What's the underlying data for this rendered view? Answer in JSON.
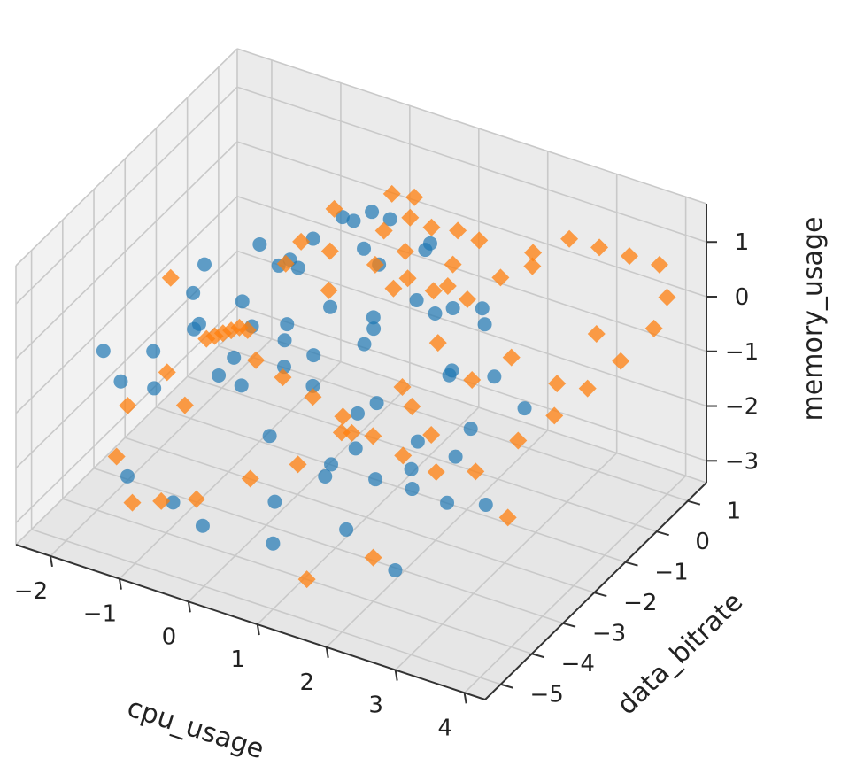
{
  "chart_data": {
    "type": "scatter",
    "projection": "3d",
    "grid": true,
    "xlabel": "cpu_usage",
    "ylabel": "data_bitrate",
    "zlabel": "memory_usage",
    "xlim": [
      -2.5,
      4.3
    ],
    "ylim": [
      -5.5,
      1.6
    ],
    "zlim": [
      -3.4,
      1.7
    ],
    "xticks": [
      "−2",
      "−1",
      "0",
      "1",
      "2",
      "3",
      "4"
    ],
    "yticks": [
      "−5",
      "−4",
      "−3",
      "−2",
      "−1",
      "0",
      "1"
    ],
    "zticks": [
      "−3",
      "−2",
      "−1",
      "0",
      "1"
    ],
    "series": [
      {
        "marker": "circle",
        "color": "#1f77b4",
        "points": [
          [
            0.0,
            -1.5,
            1.0
          ],
          [
            0.2,
            -1.0,
            1.2
          ],
          [
            0.4,
            -0.5,
            1.1
          ],
          [
            0.6,
            -1.2,
            0.9
          ],
          [
            0.8,
            -0.8,
            1.3
          ],
          [
            1.0,
            -1.6,
            1.0
          ],
          [
            1.2,
            -0.4,
            0.8
          ],
          [
            1.4,
            -1.0,
            1.1
          ],
          [
            -0.2,
            -1.8,
            0.7
          ],
          [
            0.1,
            -2.2,
            0.9
          ],
          [
            -0.5,
            -1.5,
            0.3
          ],
          [
            -0.8,
            -2.0,
            -0.2
          ],
          [
            -1.0,
            -1.0,
            0.2
          ],
          [
            -1.2,
            -2.5,
            -0.5
          ],
          [
            -0.3,
            -2.8,
            0.0
          ],
          [
            0.3,
            -3.0,
            0.4
          ],
          [
            0.7,
            -2.5,
            0.6
          ],
          [
            1.1,
            -2.0,
            0.3
          ],
          [
            1.5,
            -1.5,
            0.5
          ],
          [
            1.8,
            -1.0,
            0.2
          ],
          [
            2.0,
            -0.5,
            0.0
          ],
          [
            2.2,
            -2.0,
            -0.3
          ],
          [
            1.6,
            -3.0,
            -0.5
          ],
          [
            0.9,
            -3.5,
            -0.2
          ],
          [
            0.0,
            -3.8,
            -0.4
          ],
          [
            -0.6,
            -3.2,
            -0.8
          ],
          [
            -1.5,
            -2.0,
            -1.0
          ],
          [
            -1.8,
            -1.0,
            -0.5
          ],
          [
            -2.0,
            -2.2,
            -1.5
          ],
          [
            -1.4,
            -3.5,
            -1.2
          ],
          [
            0.5,
            -4.0,
            -1.0
          ],
          [
            1.3,
            -3.8,
            -1.3
          ],
          [
            2.1,
            -3.0,
            -1.5
          ],
          [
            2.6,
            -2.2,
            -1.0
          ],
          [
            2.4,
            -1.0,
            -0.8
          ],
          [
            1.9,
            -0.2,
            -0.5
          ],
          [
            1.0,
            0.2,
            -0.9
          ],
          [
            0.2,
            0.0,
            -1.4
          ],
          [
            -0.4,
            -0.6,
            -1.8
          ],
          [
            -1.0,
            -0.2,
            -2.0
          ],
          [
            -1.6,
            -0.5,
            -2.4
          ],
          [
            0.6,
            -1.4,
            -2.0
          ],
          [
            1.4,
            -2.6,
            -2.2
          ],
          [
            2.2,
            -1.8,
            -1.9
          ],
          [
            0.8,
            -4.5,
            -1.8
          ],
          [
            1.7,
            -4.2,
            -2.1
          ],
          [
            -0.2,
            -4.6,
            -2.6
          ],
          [
            -0.9,
            -4.0,
            -2.8
          ],
          [
            0.4,
            -2.0,
            -2.9
          ],
          [
            1.2,
            -0.8,
            -2.6
          ],
          [
            2.8,
            -3.4,
            -1.6
          ],
          [
            3.0,
            -2.6,
            -2.0
          ],
          [
            2.5,
            -4.4,
            -2.4
          ],
          [
            1.0,
            -5.0,
            -2.2
          ],
          [
            -1.2,
            -4.8,
            -2.0
          ],
          [
            -2.0,
            -3.8,
            -0.6
          ],
          [
            -2.2,
            -2.8,
            -1.8
          ],
          [
            0.0,
            -0.2,
            0.6
          ],
          [
            1.6,
            -3.4,
            0.8
          ],
          [
            0.8,
            -4.2,
            0.5
          ],
          [
            2.6,
            -2.8,
            0.4
          ],
          [
            3.2,
            -1.8,
            -0.6
          ],
          [
            -0.7,
            -3.8,
            1.0
          ],
          [
            1.3,
            -1.2,
            -3.2
          ],
          [
            0.3,
            -0.8,
            -3.1
          ]
        ]
      },
      {
        "marker": "diamond",
        "color": "#ff7f0e",
        "points": [
          [
            0.8,
            -1.0,
            1.2
          ],
          [
            1.0,
            -0.6,
            1.3
          ],
          [
            1.2,
            -1.2,
            1.1
          ],
          [
            1.4,
            -0.8,
            1.4
          ],
          [
            1.6,
            -0.4,
            1.2
          ],
          [
            1.8,
            -1.0,
            1.0
          ],
          [
            2.0,
            -0.6,
            1.3
          ],
          [
            0.6,
            -0.3,
            1.4
          ],
          [
            0.9,
            -1.5,
            0.9
          ],
          [
            1.3,
            -1.8,
            0.8
          ],
          [
            1.7,
            -1.4,
            0.7
          ],
          [
            2.1,
            -1.2,
            0.6
          ],
          [
            2.4,
            -0.8,
            0.9
          ],
          [
            2.6,
            -0.2,
            1.1
          ],
          [
            2.9,
            0.3,
            1.2
          ],
          [
            3.2,
            0.6,
            1.0
          ],
          [
            3.5,
            0.9,
            0.8
          ],
          [
            3.8,
            1.2,
            0.6
          ],
          [
            4.0,
            1.0,
            0.2
          ],
          [
            3.9,
            0.8,
            -0.3
          ],
          [
            3.6,
            0.4,
            -0.8
          ],
          [
            3.3,
            0.0,
            -1.2
          ],
          [
            3.0,
            -0.4,
            -1.6
          ],
          [
            2.7,
            -0.9,
            -1.9
          ],
          [
            2.4,
            -1.6,
            -2.2
          ],
          [
            2.1,
            -2.2,
            -2.0
          ],
          [
            1.8,
            -2.6,
            -1.6
          ],
          [
            1.5,
            -2.9,
            -1.2
          ],
          [
            1.2,
            -3.2,
            -0.8
          ],
          [
            0.9,
            -3.5,
            -0.4
          ],
          [
            0.6,
            -3.8,
            0.0
          ],
          [
            0.3,
            -4.0,
            0.3
          ],
          [
            0.0,
            -3.6,
            0.5
          ],
          [
            -0.3,
            -3.2,
            0.2
          ],
          [
            -0.6,
            -2.8,
            -0.2
          ],
          [
            -0.9,
            -2.4,
            -0.6
          ],
          [
            -1.2,
            -2.0,
            -1.0
          ],
          [
            -1.5,
            -1.6,
            -1.4
          ],
          [
            -1.8,
            -2.2,
            -1.8
          ],
          [
            -2.1,
            -2.8,
            -2.2
          ],
          [
            -1.9,
            -3.6,
            -2.6
          ],
          [
            -1.4,
            -4.2,
            -2.9
          ],
          [
            -0.8,
            -4.6,
            -2.4
          ],
          [
            -0.2,
            -4.8,
            -2.0
          ],
          [
            0.4,
            -4.4,
            -1.6
          ],
          [
            1.0,
            -4.2,
            -1.2
          ],
          [
            1.6,
            -3.8,
            -0.6
          ],
          [
            2.2,
            -3.2,
            -0.2
          ],
          [
            2.8,
            -2.6,
            0.2
          ],
          [
            3.1,
            -2.0,
            0.4
          ],
          [
            1.1,
            -0.9,
            0.4
          ],
          [
            1.5,
            -0.5,
            0.2
          ],
          [
            1.9,
            -1.7,
            0.0
          ],
          [
            0.5,
            -2.1,
            0.6
          ],
          [
            0.2,
            -1.4,
            0.8
          ],
          [
            -0.4,
            -1.0,
            0.5
          ],
          [
            -0.1,
            -0.6,
            1.0
          ],
          [
            2.3,
            -2.8,
            -0.9
          ],
          [
            1.7,
            -2.4,
            -0.5
          ],
          [
            1.0,
            -2.8,
            -1.4
          ],
          [
            3.4,
            -1.2,
            -0.4
          ],
          [
            3.7,
            -0.6,
            0.3
          ],
          [
            2.5,
            0.0,
            0.7
          ],
          [
            0.7,
            0.2,
            1.1
          ],
          [
            -1.0,
            -3.4,
            -1.4
          ],
          [
            2.0,
            -4.0,
            -2.6
          ],
          [
            3.5,
            -3.0,
            -1.8
          ],
          [
            -2.2,
            -1.2,
            -0.8
          ],
          [
            1.4,
            -4.8,
            -2.8
          ],
          [
            0.1,
            -2.6,
            1.2
          ]
        ]
      }
    ]
  }
}
